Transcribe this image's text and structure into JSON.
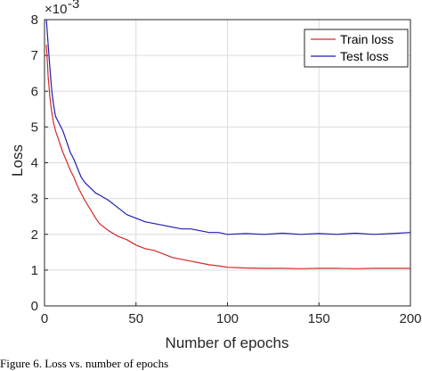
{
  "chart_data": {
    "type": "line",
    "xlabel": "Number of epochs",
    "ylabel": "Loss",
    "y_multiplier": "×10",
    "y_exponent": "-3",
    "xlim": [
      0,
      200
    ],
    "ylim": [
      0,
      8
    ],
    "x_ticks": [
      "0",
      "50",
      "100",
      "150",
      "200"
    ],
    "y_ticks": [
      "0",
      "1",
      "2",
      "3",
      "4",
      "5",
      "6",
      "7",
      "8"
    ],
    "grid": true,
    "legend_position": "top-right",
    "series": [
      {
        "name": "Train loss",
        "color": "#d62728",
        "x": [
          1,
          2,
          3,
          4,
          5,
          6,
          8,
          10,
          12,
          14,
          16,
          18,
          20,
          22,
          25,
          28,
          30,
          35,
          40,
          45,
          50,
          55,
          60,
          65,
          70,
          75,
          80,
          85,
          90,
          95,
          100,
          110,
          120,
          130,
          140,
          150,
          160,
          170,
          180,
          190,
          200
        ],
        "y": [
          7.3,
          6.4,
          5.8,
          5.4,
          5.1,
          4.9,
          4.6,
          4.3,
          4.05,
          3.8,
          3.6,
          3.35,
          3.15,
          2.95,
          2.7,
          2.45,
          2.3,
          2.1,
          1.95,
          1.85,
          1.7,
          1.6,
          1.55,
          1.45,
          1.35,
          1.3,
          1.25,
          1.2,
          1.15,
          1.12,
          1.08,
          1.06,
          1.05,
          1.05,
          1.04,
          1.05,
          1.05,
          1.04,
          1.05,
          1.05,
          1.05
        ]
      },
      {
        "name": "Test loss",
        "color": "#1f1fb4",
        "x": [
          1,
          2,
          3,
          4,
          5,
          6,
          8,
          10,
          12,
          14,
          16,
          18,
          20,
          22,
          25,
          28,
          30,
          35,
          40,
          45,
          50,
          55,
          60,
          65,
          70,
          75,
          80,
          85,
          90,
          95,
          100,
          110,
          120,
          130,
          140,
          150,
          160,
          170,
          180,
          190,
          200
        ],
        "y": [
          8.0,
          7.3,
          6.6,
          6.0,
          5.6,
          5.3,
          5.1,
          4.9,
          4.6,
          4.3,
          4.1,
          3.85,
          3.6,
          3.45,
          3.3,
          3.15,
          3.1,
          2.95,
          2.75,
          2.55,
          2.45,
          2.35,
          2.3,
          2.25,
          2.2,
          2.15,
          2.15,
          2.1,
          2.05,
          2.05,
          2.0,
          2.02,
          2.0,
          2.03,
          2.0,
          2.02,
          2.0,
          2.03,
          2.0,
          2.02,
          2.05
        ]
      }
    ]
  },
  "caption": "Figure 6. Loss vs. number of epochs"
}
